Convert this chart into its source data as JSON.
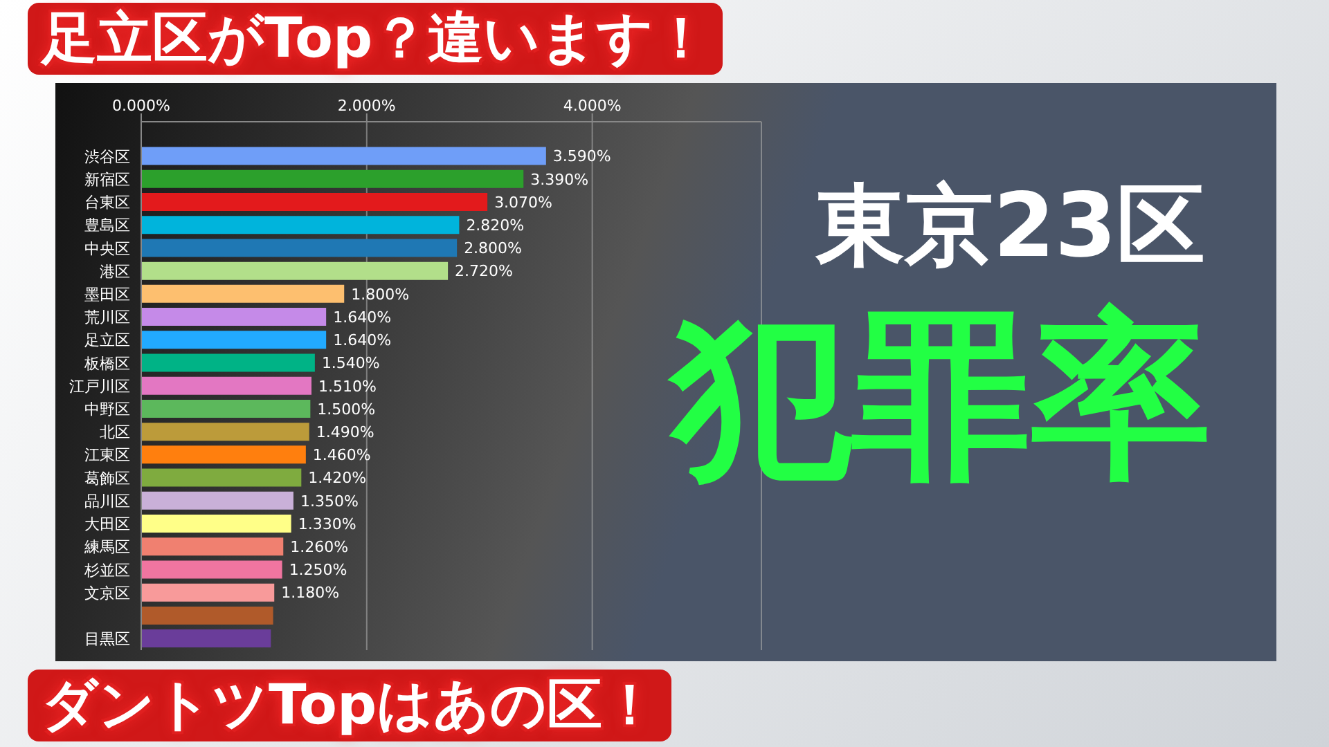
{
  "chart_data": {
    "type": "bar",
    "orientation": "horizontal",
    "title": "東京23区",
    "subtitle": "犯罪率",
    "annotations": [
      "足立区がTop？違います！",
      "ダントツTopはあの区！"
    ],
    "categories": [
      null,
      "渋谷区",
      "新宿区",
      "台東区",
      "豊島区",
      "中央区",
      "港区",
      "墨田区",
      "荒川区",
      "足立区",
      "板橋区",
      "江戸川区",
      "中野区",
      "北区",
      "江東区",
      "葛飾区",
      "品川区",
      "大田区",
      "練馬区",
      "杉並区",
      "文京区",
      null,
      "目黒区"
    ],
    "values": [
      null,
      3.59,
      3.39,
      3.07,
      2.82,
      2.8,
      2.72,
      1.8,
      1.64,
      1.64,
      1.54,
      1.51,
      1.5,
      1.49,
      1.46,
      1.42,
      1.35,
      1.33,
      1.26,
      1.25,
      1.18,
      1.17,
      1.15
    ],
    "value_labels": [
      null,
      "3.590%",
      "3.390%",
      "3.070%",
      "2.820%",
      "2.800%",
      "2.720%",
      "1.800%",
      "1.640%",
      "1.640%",
      "1.540%",
      "1.510%",
      "1.500%",
      "1.490%",
      "1.460%",
      "1.420%",
      "1.350%",
      "1.330%",
      "1.260%",
      "1.250%",
      "1.180%",
      null,
      null
    ],
    "colors": [
      "#a6cee3",
      "#6f9ef8",
      "#2ca02c",
      "#e31a1c",
      "#00b4dc",
      "#1f78b4",
      "#b2df8a",
      "#fdbf6f",
      "#c58ae8",
      "#22aaff",
      "#00b386",
      "#e377c2",
      "#5cb85c",
      "#bc9b3a",
      "#ff7f0e",
      "#7fab3f",
      "#c9b0d8",
      "#ffff88",
      "#f08070",
      "#f075a0",
      "#f89a9a",
      "#b05a2a",
      "#6a3d9a"
    ],
    "xlim": [
      0,
      5.5
    ],
    "xticks": [
      {
        "value": 0,
        "label": "0.000%"
      },
      {
        "value": 2,
        "label": "2.000%"
      },
      {
        "value": 4,
        "label": "4.000%"
      }
    ],
    "grid": "x"
  }
}
